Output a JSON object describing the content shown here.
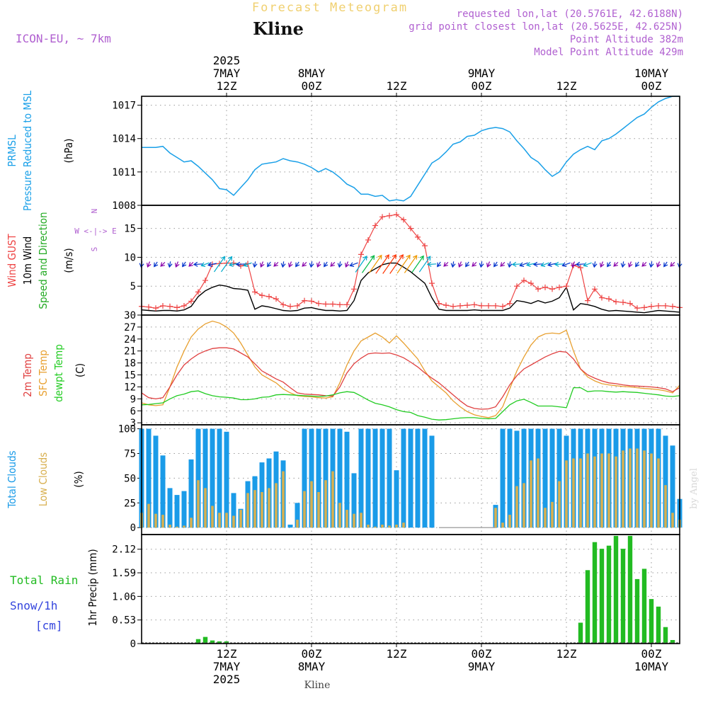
{
  "header": {
    "title": "Forecast Meteogram",
    "location": "Kline",
    "model": "ICON-EU, ~ 7km",
    "requested": "requested lon,lat (20.5761E, 42.6188N)",
    "grid_point": "grid point closest lon,lat (20.5625E, 42.625N)",
    "point_altitude": "Point Altitude 382m",
    "model_altitude": "Model Point Altitude 429m",
    "footer_location": "Kline",
    "credit": "by Angel"
  },
  "chart_data": {
    "type": "line",
    "time_axis": {
      "start": "2025-05-07T00Z",
      "end": "2025-05-10T06Z",
      "ticks_top": [
        {
          "hour": 12,
          "lines": [
            "2025",
            "7MAY",
            "12Z"
          ]
        },
        {
          "hour": 24,
          "lines": [
            "8MAY",
            "00Z"
          ]
        },
        {
          "hour": 36,
          "lines": [
            "12Z"
          ]
        },
        {
          "hour": 48,
          "lines": [
            "9MAY",
            "00Z"
          ]
        },
        {
          "hour": 60,
          "lines": [
            "12Z"
          ]
        },
        {
          "hour": 72,
          "lines": [
            "10MAY",
            "00Z"
          ]
        }
      ],
      "ticks_bottom": [
        {
          "hour": 12,
          "lines": [
            "12Z",
            "7MAY",
            "2025"
          ]
        },
        {
          "hour": 24,
          "lines": [
            "00Z",
            "8MAY"
          ]
        },
        {
          "hour": 36,
          "lines": [
            "12Z"
          ]
        },
        {
          "hour": 48,
          "lines": [
            "00Z",
            "9MAY"
          ]
        },
        {
          "hour": 60,
          "lines": [
            "12Z"
          ]
        },
        {
          "hour": 72,
          "lines": [
            "00Z",
            "10MAY"
          ]
        }
      ]
    },
    "pressure": {
      "labels": [
        "PRMSL",
        "Pressure Reduced to MSL",
        "(hPa)"
      ],
      "ylim": [
        1008,
        1017.8
      ],
      "ticks": [
        1008,
        1011,
        1014,
        1017
      ],
      "hours": [
        0,
        1,
        2,
        3,
        4,
        5,
        6,
        7,
        8,
        9,
        10,
        11,
        12,
        13,
        14,
        15,
        16,
        17,
        18,
        19,
        20,
        21,
        22,
        23,
        24,
        25,
        26,
        27,
        28,
        29,
        30,
        31,
        32,
        33,
        34,
        35,
        36,
        37,
        38,
        39,
        40,
        41,
        42,
        43,
        44,
        45,
        46,
        47,
        48,
        49,
        50,
        51,
        52,
        53,
        54,
        55,
        56,
        57,
        58,
        59,
        60,
        61,
        62,
        63,
        64,
        65,
        66,
        67,
        68,
        69,
        70,
        71,
        72,
        73,
        74,
        75,
        76
      ],
      "values": [
        1013.2,
        1013.2,
        1013.2,
        1013.3,
        1012.7,
        1012.3,
        1011.9,
        1012.0,
        1011.5,
        1010.9,
        1010.3,
        1009.5,
        1009.4,
        1008.9,
        1009.6,
        1010.3,
        1011.2,
        1011.7,
        1011.8,
        1011.9,
        1012.2,
        1012.0,
        1011.9,
        1011.7,
        1011.4,
        1011.0,
        1011.3,
        1011.0,
        1010.5,
        1009.9,
        1009.6,
        1009.0,
        1009.0,
        1008.8,
        1008.9,
        1008.4,
        1008.5,
        1008.4,
        1008.8,
        1009.8,
        1010.8,
        1011.8,
        1012.2,
        1012.8,
        1013.5,
        1013.7,
        1014.2,
        1014.3,
        1014.7,
        1014.9,
        1015.0,
        1014.9,
        1014.6,
        1013.8,
        1013.1,
        1012.3,
        1011.9,
        1011.2,
        1010.6,
        1011.0,
        1011.9,
        1012.6,
        1013.0,
        1013.3,
        1013.0,
        1013.8,
        1014.0,
        1014.4,
        1014.9,
        1015.4,
        1015.9,
        1016.2,
        1016.8,
        1017.3,
        1017.6,
        1017.8,
        1017.8
      ]
    },
    "wind": {
      "labels": [
        "Wind GUST",
        "10m Wind",
        "Speed and Direction",
        "(m/s)"
      ],
      "compass": [
        "N",
        "W <-|-> E",
        "S"
      ],
      "ylim": [
        0,
        19
      ],
      "ticks": [
        5,
        10,
        15
      ],
      "hours": [
        0,
        1,
        2,
        3,
        4,
        5,
        6,
        7,
        8,
        9,
        10,
        11,
        12,
        13,
        14,
        15,
        16,
        17,
        18,
        19,
        20,
        21,
        22,
        23,
        24,
        25,
        26,
        27,
        28,
        29,
        30,
        31,
        32,
        33,
        34,
        35,
        36,
        37,
        38,
        39,
        40,
        41,
        42,
        43,
        44,
        45,
        46,
        47,
        48,
        49,
        50,
        51,
        52,
        53,
        54,
        55,
        56,
        57,
        58,
        59,
        60,
        61,
        62,
        63,
        64,
        65,
        66,
        67,
        68,
        69,
        70,
        71,
        72,
        73,
        74,
        75,
        76
      ],
      "gust": [
        1.5,
        1.4,
        1.2,
        1.6,
        1.5,
        1.3,
        1.6,
        2.4,
        4.0,
        6.0,
        8.8,
        8.9,
        9.0,
        9.0,
        8.5,
        8.9,
        4.0,
        3.4,
        3.2,
        2.8,
        1.8,
        1.5,
        1.6,
        2.5,
        2.4,
        2.0,
        1.9,
        1.9,
        1.8,
        1.8,
        4.5,
        10.5,
        13.0,
        15.5,
        17.0,
        17.2,
        17.4,
        16.5,
        15.0,
        13.5,
        12.0,
        5.5,
        2.0,
        1.7,
        1.5,
        1.6,
        1.7,
        1.8,
        1.6,
        1.6,
        1.6,
        1.5,
        2.0,
        5.0,
        6.0,
        5.5,
        4.5,
        4.8,
        4.5,
        4.8,
        5.0,
        8.6,
        8.2,
        2.5,
        4.5,
        3.0,
        2.8,
        2.3,
        2.2,
        2.0,
        1.2,
        1.3,
        1.5,
        1.6,
        1.6,
        1.5,
        1.3
      ],
      "speed": [
        0.9,
        0.8,
        0.7,
        0.8,
        0.8,
        0.7,
        0.9,
        1.5,
        3.2,
        4.2,
        4.8,
        5.2,
        5.0,
        4.6,
        4.5,
        4.3,
        1.0,
        1.6,
        1.4,
        1.1,
        0.8,
        0.7,
        0.8,
        1.2,
        1.3,
        1.0,
        0.8,
        0.8,
        0.7,
        0.8,
        2.5,
        6.0,
        7.3,
        8.0,
        8.7,
        9.0,
        9.0,
        8.3,
        7.5,
        6.5,
        5.5,
        3.0,
        1.0,
        0.8,
        0.8,
        0.8,
        0.8,
        0.9,
        0.8,
        0.8,
        0.8,
        0.8,
        1.2,
        2.5,
        2.3,
        2.0,
        2.5,
        2.1,
        2.4,
        3.0,
        4.8,
        0.9,
        2.0,
        1.8,
        1.5,
        1.0,
        0.7,
        0.8,
        0.7,
        0.6,
        0.5,
        0.4,
        0.6,
        0.8,
        0.7,
        0.6,
        0.5
      ],
      "arrow_mid": 8.8,
      "arrow_colors": [
        "#8800aa",
        "#0033cc",
        "#00aacc",
        "#00bb44",
        "#ee9900",
        "#ff3300",
        "#cc00aa"
      ]
    },
    "temperature": {
      "labels": [
        "2m Temp",
        "SFC Temp",
        "dewpt Temp",
        "(C)"
      ],
      "ylim": [
        2.5,
        30
      ],
      "ticks": [
        3,
        6,
        9,
        12,
        15,
        18,
        21,
        24,
        27,
        30
      ],
      "hours": [
        0,
        1,
        2,
        3,
        4,
        5,
        6,
        7,
        8,
        9,
        10,
        11,
        12,
        13,
        14,
        15,
        16,
        17,
        18,
        19,
        20,
        21,
        22,
        23,
        24,
        25,
        26,
        27,
        28,
        29,
        30,
        31,
        32,
        33,
        34,
        35,
        36,
        37,
        38,
        39,
        40,
        41,
        42,
        43,
        44,
        45,
        46,
        47,
        48,
        49,
        50,
        51,
        52,
        53,
        54,
        55,
        56,
        57,
        58,
        59,
        60,
        61,
        62,
        63,
        64,
        65,
        66,
        67,
        68,
        69,
        70,
        71,
        72,
        73,
        74,
        75,
        76
      ],
      "t2m": [
        10.5,
        9.3,
        9.0,
        9.3,
        12.0,
        15.0,
        17.5,
        19.0,
        20.2,
        21.0,
        21.6,
        21.8,
        21.8,
        21.5,
        20.5,
        19.5,
        17.8,
        16.0,
        15.0,
        14.0,
        13.2,
        11.8,
        10.5,
        10.2,
        10.1,
        10.0,
        9.8,
        9.7,
        12.0,
        15.5,
        17.8,
        19.2,
        20.3,
        20.5,
        20.4,
        20.5,
        20.0,
        19.3,
        18.2,
        17.0,
        15.5,
        14.2,
        13.0,
        11.5,
        10.0,
        8.5,
        7.2,
        6.6,
        6.4,
        6.5,
        7.0,
        9.5,
        12.5,
        14.8,
        16.5,
        17.5,
        18.5,
        19.5,
        20.3,
        20.9,
        20.7,
        19.0,
        16.5,
        15.0,
        14.2,
        13.5,
        13.0,
        12.8,
        12.5,
        12.3,
        12.2,
        12.1,
        12.0,
        11.8,
        11.5,
        10.8,
        11.8
      ],
      "sfc": [
        8.0,
        7.5,
        7.3,
        7.5,
        12.0,
        17.0,
        21.0,
        24.5,
        26.5,
        27.8,
        28.5,
        28.0,
        27.0,
        25.5,
        23.0,
        20.0,
        17.0,
        15.0,
        14.0,
        13.0,
        11.5,
        10.5,
        9.8,
        9.6,
        9.5,
        9.3,
        9.2,
        9.5,
        13.0,
        17.5,
        21.0,
        23.5,
        24.5,
        25.5,
        24.5,
        23.0,
        24.8,
        23.0,
        21.0,
        19.0,
        16.0,
        13.5,
        12.0,
        10.5,
        8.5,
        7.0,
        5.8,
        5.0,
        4.6,
        4.3,
        4.8,
        7.0,
        11.5,
        16.0,
        19.5,
        22.5,
        24.5,
        25.3,
        25.5,
        25.3,
        26.2,
        21.0,
        16.5,
        14.5,
        13.5,
        12.8,
        12.5,
        12.3,
        12.1,
        12.0,
        11.8,
        11.6,
        11.5,
        11.3,
        11.0,
        10.5,
        12.4
      ],
      "dewpt": [
        7.5,
        7.6,
        7.8,
        8.0,
        9.0,
        9.8,
        10.2,
        10.8,
        11.0,
        10.3,
        9.8,
        9.5,
        9.4,
        9.2,
        8.8,
        8.8,
        9.0,
        9.4,
        9.5,
        10.0,
        10.1,
        10.0,
        9.9,
        9.8,
        9.7,
        9.6,
        9.7,
        10.0,
        10.5,
        10.8,
        10.6,
        9.7,
        8.7,
        7.9,
        7.5,
        7.0,
        6.3,
        5.8,
        5.6,
        4.8,
        4.4,
        3.9,
        3.7,
        3.8,
        4.0,
        4.2,
        4.3,
        4.3,
        4.1,
        4.0,
        4.1,
        5.8,
        7.5,
        8.5,
        8.9,
        8.1,
        7.2,
        7.2,
        7.2,
        7.0,
        6.8,
        11.8,
        11.8,
        10.8,
        11.0,
        11.0,
        10.8,
        10.7,
        10.8,
        10.7,
        10.6,
        10.4,
        10.2,
        10.0,
        9.7,
        9.6,
        9.8
      ]
    },
    "clouds": {
      "labels": [
        "Total Clouds",
        "Low Clouds",
        "(%)"
      ],
      "ylim": [
        -7,
        104
      ],
      "ticks": [
        0,
        25,
        50,
        75,
        100
      ],
      "hours": [
        0,
        1,
        2,
        3,
        4,
        5,
        6,
        7,
        8,
        9,
        10,
        11,
        12,
        13,
        14,
        15,
        16,
        17,
        18,
        19,
        20,
        21,
        22,
        23,
        24,
        25,
        26,
        27,
        28,
        29,
        30,
        31,
        32,
        33,
        34,
        35,
        36,
        37,
        38,
        39,
        40,
        41,
        42,
        43,
        44,
        45,
        46,
        47,
        48,
        49,
        50,
        51,
        52,
        53,
        54,
        55,
        56,
        57,
        58,
        59,
        60,
        61,
        62,
        63,
        64,
        65,
        66,
        67,
        68,
        69,
        70,
        71,
        72,
        73,
        74,
        75,
        76
      ],
      "total": [
        100,
        100,
        93,
        73,
        40,
        33,
        37,
        69,
        100,
        100,
        100,
        100,
        97,
        35,
        19,
        47,
        52,
        66,
        70,
        77,
        68,
        3,
        25,
        100,
        100,
        100,
        100,
        100,
        100,
        97,
        55,
        100,
        100,
        100,
        100,
        100,
        58,
        100,
        100,
        100,
        100,
        93,
        0,
        0,
        0,
        0,
        0,
        0,
        0,
        0,
        23,
        100,
        100,
        98,
        100,
        100,
        100,
        100,
        100,
        100,
        93,
        100,
        100,
        100,
        100,
        100,
        100,
        100,
        100,
        100,
        100,
        100,
        100,
        100,
        93,
        83,
        29
      ],
      "low": [
        15,
        24,
        14,
        13,
        3,
        1,
        2,
        10,
        48,
        40,
        22,
        15,
        15,
        12,
        18,
        35,
        38,
        36,
        40,
        45,
        57,
        0,
        8,
        37,
        47,
        36,
        48,
        57,
        25,
        18,
        14,
        15,
        3,
        1,
        3,
        2,
        3,
        5,
        0,
        0,
        0,
        0,
        0,
        0,
        0,
        0,
        0,
        0,
        0,
        0,
        20,
        5,
        13,
        42,
        45,
        68,
        70,
        20,
        26,
        47,
        68,
        70,
        70,
        75,
        72,
        75,
        75,
        72,
        78,
        80,
        80,
        78,
        75,
        70,
        43,
        15,
        8
      ]
    },
    "precip": {
      "labels": [
        "Total Rain",
        "Snow/1h",
        "[cm]",
        "1hr Precip (mm)"
      ],
      "ylim": [
        0,
        2.45
      ],
      "ticks": [
        0,
        0.53,
        1.06,
        1.59,
        2.12
      ],
      "tick_labels": [
        "0",
        "0.53",
        "1.06",
        "1.59",
        "2.12"
      ],
      "hours": [
        0,
        1,
        2,
        3,
        4,
        5,
        6,
        7,
        8,
        9,
        10,
        11,
        12,
        13,
        14,
        15,
        16,
        17,
        18,
        19,
        20,
        21,
        22,
        23,
        24,
        25,
        26,
        27,
        28,
        29,
        30,
        31,
        32,
        33,
        34,
        35,
        36,
        37,
        38,
        39,
        40,
        41,
        42,
        43,
        44,
        45,
        46,
        47,
        48,
        49,
        50,
        51,
        52,
        53,
        54,
        55,
        56,
        57,
        58,
        59,
        60,
        61,
        62,
        63,
        64,
        65,
        66,
        67,
        68,
        69,
        70,
        71,
        72,
        73,
        74,
        75,
        76
      ],
      "rain": [
        0,
        0,
        0,
        0,
        0,
        0,
        0,
        0,
        0.1,
        0.15,
        0.07,
        0.05,
        0.05,
        0,
        0,
        0,
        0,
        0,
        0,
        0,
        0,
        0,
        0,
        0,
        0,
        0,
        0,
        0,
        0,
        0,
        0,
        0,
        0,
        0,
        0,
        0,
        0,
        0,
        0,
        0,
        0,
        0,
        0,
        0,
        0,
        0,
        0,
        0,
        0,
        0,
        0,
        0,
        0,
        0,
        0,
        0,
        0,
        0,
        0,
        0,
        0,
        0,
        0.47,
        1.65,
        2.28,
        2.13,
        2.2,
        2.42,
        2.13,
        2.42,
        1.45,
        1.68,
        1.0,
        0.83,
        0.37,
        0.08,
        0
      ]
    }
  }
}
